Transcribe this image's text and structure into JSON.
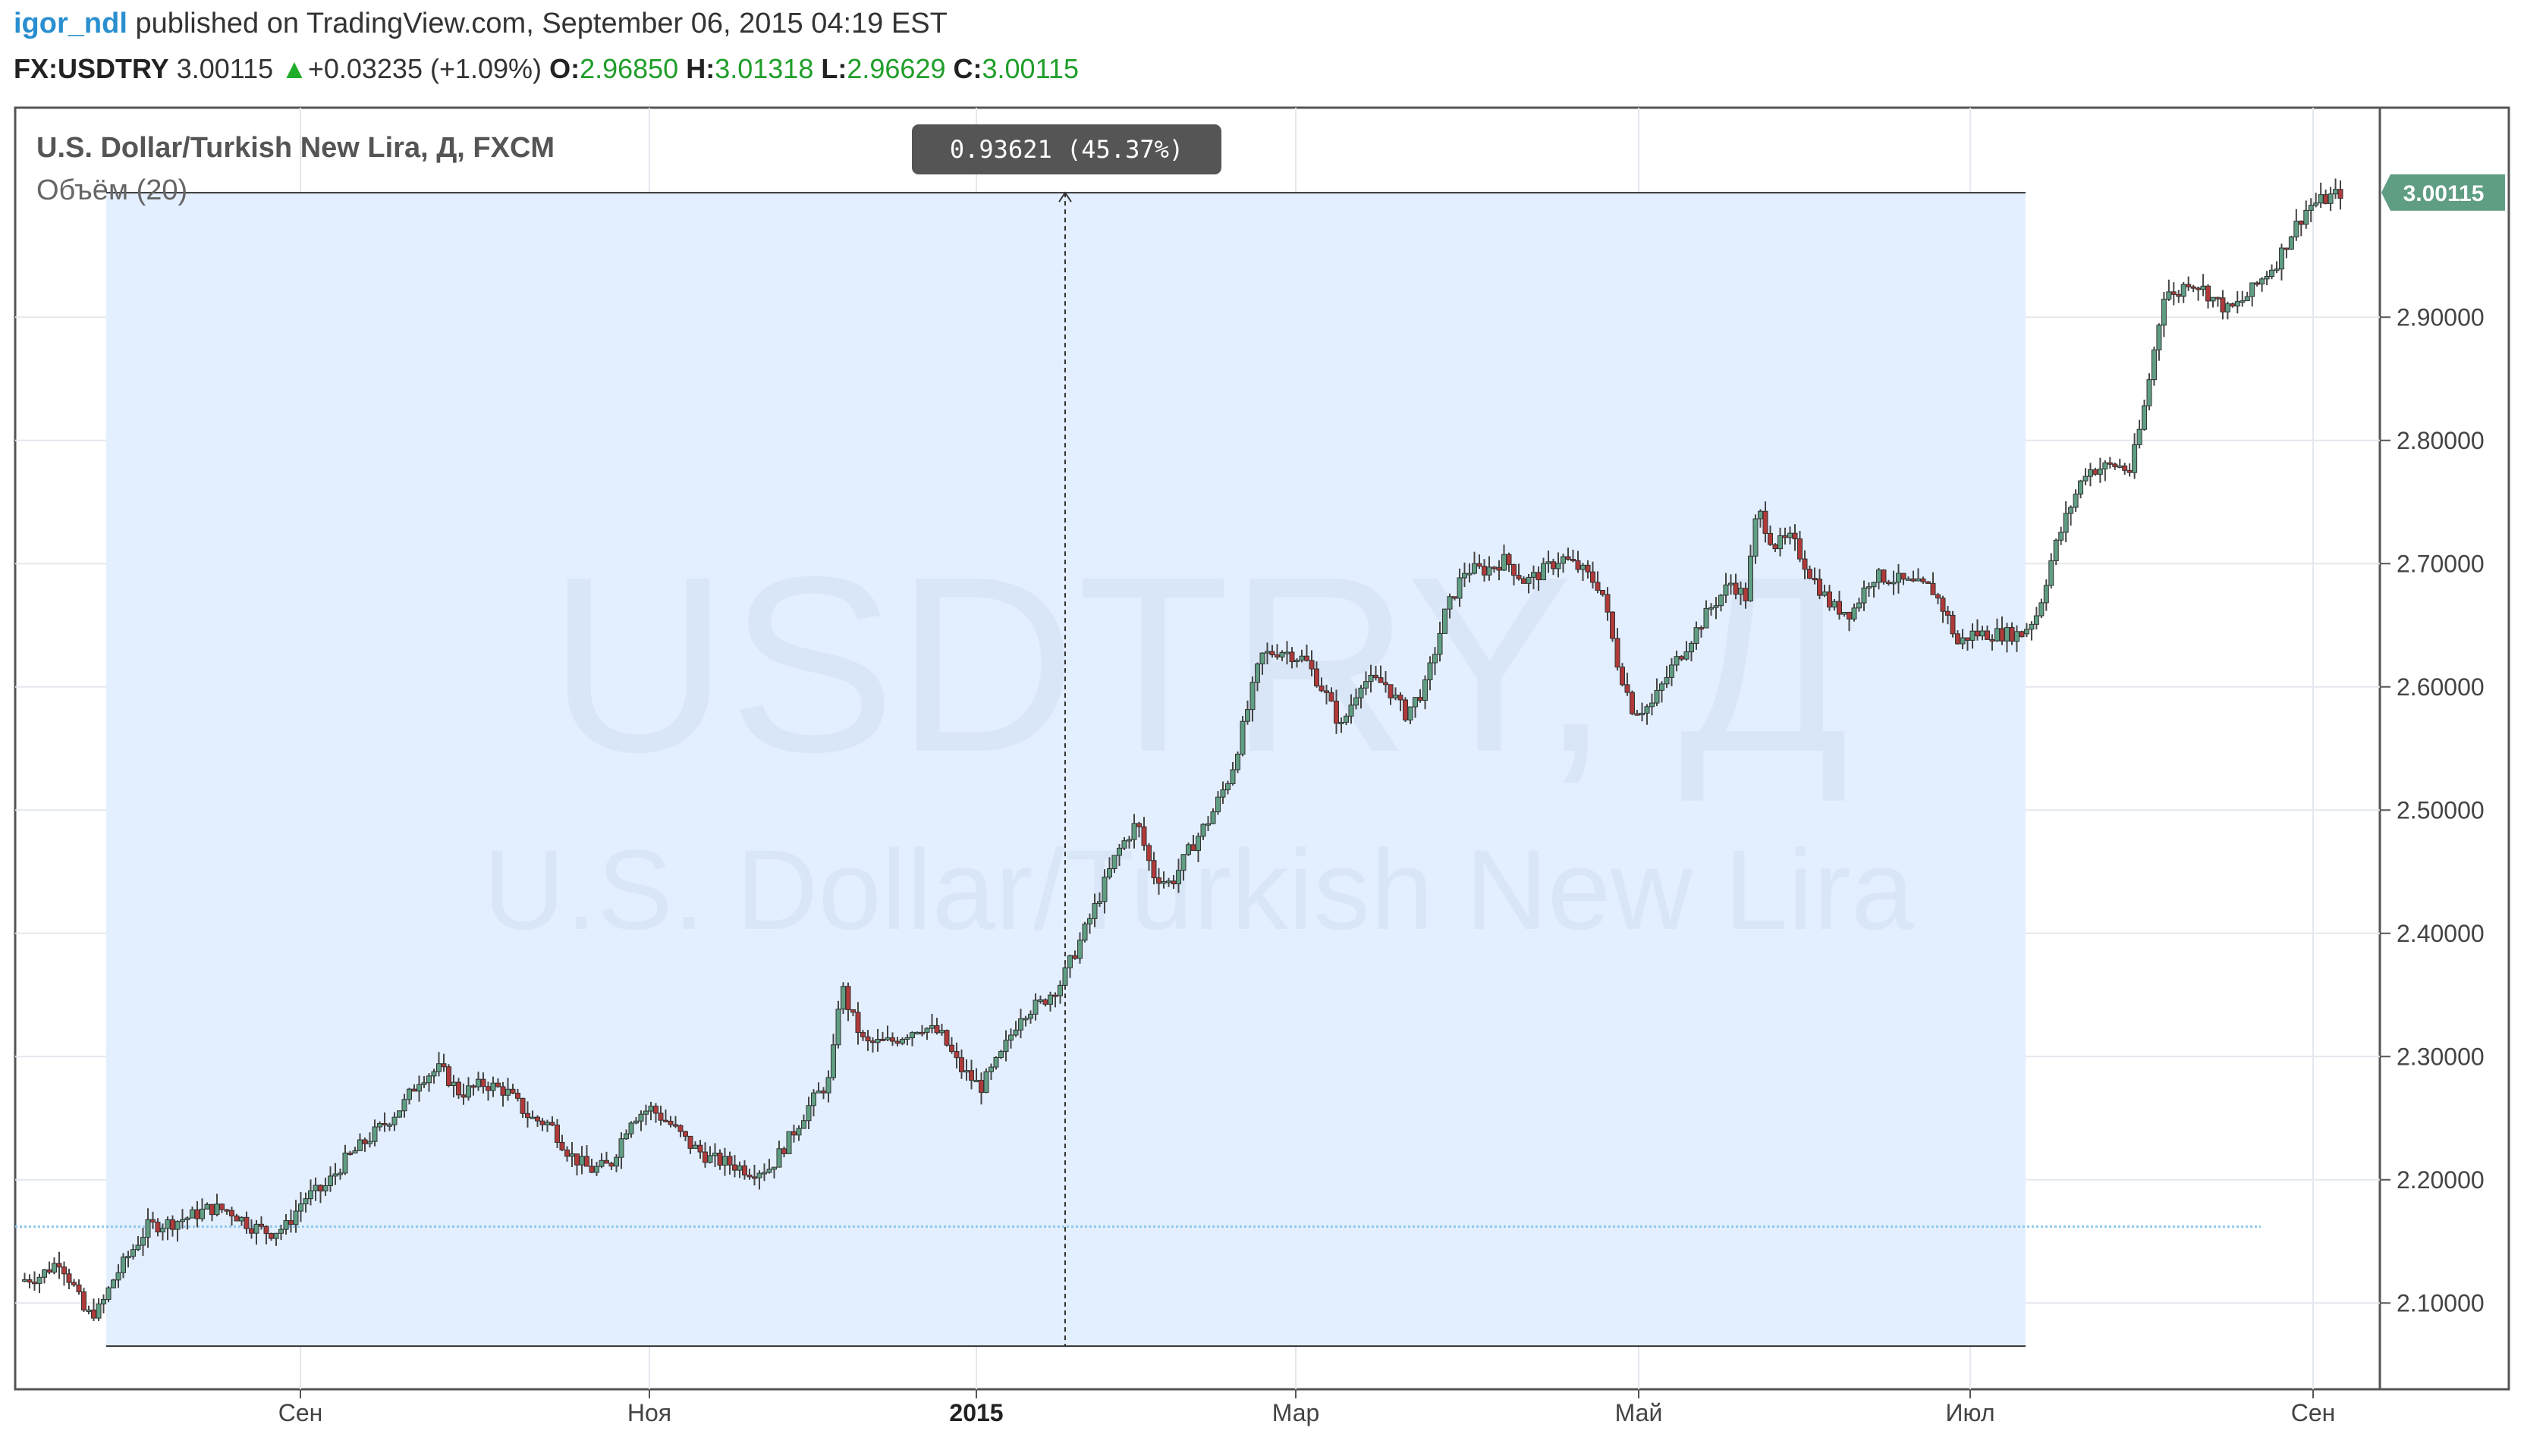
{
  "header": {
    "user": "igor_ndl",
    "published": "published on TradingView.com, September 06, 2015 04:19 EST"
  },
  "quote": {
    "symbol": "FX:USDTRY",
    "last": "3.00115",
    "change": "+0.03235 (+1.09%)",
    "o_label": "O:",
    "o_val": "2.96850",
    "h_label": "H:",
    "h_val": "3.01318",
    "l_label": "L:",
    "l_val": "2.96629",
    "c_label": "C:",
    "c_val": "3.00115"
  },
  "legend": {
    "title": "U.S. Dollar/Turkish New Lira, Д, FXCM",
    "volume": "Объём (20)"
  },
  "watermark": {
    "symbol": "USDTRY, Д",
    "name": "U.S. Dollar/Turkish New Lira"
  },
  "measure_tooltip": "0.93621 (45.37%)",
  "price_tag": "3.00115",
  "colors": {
    "up": "#5f9e83",
    "down": "#b03a3a",
    "range_fill": "#e3efff",
    "grid": "#e3e8ee",
    "price_tag": "#5f9e83"
  },
  "chart_data": {
    "type": "candlestick",
    "ylim": [
      2.03,
      3.07
    ],
    "yticks": [
      "2.10000",
      "2.20000",
      "2.30000",
      "2.40000",
      "2.50000",
      "2.60000",
      "2.70000",
      "2.80000",
      "2.90000"
    ],
    "xticks": [
      "Сен",
      "Ноя",
      "2015",
      "Мар",
      "Май",
      "Июл",
      "Сен"
    ],
    "bold_xtick": "2015",
    "volume_ma_level": 2.162,
    "measure": {
      "from": 2.065,
      "to": 3.001,
      "delta": 0.93621,
      "percent": 45.37
    },
    "path": [
      [
        0.0,
        2.118
      ],
      [
        0.01,
        2.122
      ],
      [
        0.02,
        2.135
      ],
      [
        0.027,
        2.113
      ],
      [
        0.033,
        2.09
      ],
      [
        0.04,
        2.095
      ],
      [
        0.047,
        2.12
      ],
      [
        0.055,
        2.14
      ],
      [
        0.064,
        2.162
      ],
      [
        0.075,
        2.165
      ],
      [
        0.085,
        2.17
      ],
      [
        0.095,
        2.177
      ],
      [
        0.105,
        2.175
      ],
      [
        0.115,
        2.163
      ],
      [
        0.125,
        2.157
      ],
      [
        0.133,
        2.162
      ],
      [
        0.142,
        2.185
      ],
      [
        0.152,
        2.193
      ],
      [
        0.162,
        2.215
      ],
      [
        0.172,
        2.23
      ],
      [
        0.182,
        2.245
      ],
      [
        0.192,
        2.262
      ],
      [
        0.2,
        2.283
      ],
      [
        0.21,
        2.29
      ],
      [
        0.22,
        2.27
      ],
      [
        0.232,
        2.278
      ],
      [
        0.243,
        2.272
      ],
      [
        0.255,
        2.25
      ],
      [
        0.265,
        2.245
      ],
      [
        0.275,
        2.22
      ],
      [
        0.285,
        2.208
      ],
      [
        0.295,
        2.212
      ],
      [
        0.305,
        2.25
      ],
      [
        0.315,
        2.258
      ],
      [
        0.325,
        2.245
      ],
      [
        0.335,
        2.228
      ],
      [
        0.345,
        2.217
      ],
      [
        0.355,
        2.213
      ],
      [
        0.365,
        2.207
      ],
      [
        0.375,
        2.21
      ],
      [
        0.385,
        2.235
      ],
      [
        0.395,
        2.262
      ],
      [
        0.405,
        2.282
      ],
      [
        0.41,
        2.36
      ],
      [
        0.415,
        2.335
      ],
      [
        0.422,
        2.31
      ],
      [
        0.435,
        2.312
      ],
      [
        0.45,
        2.325
      ],
      [
        0.46,
        2.318
      ],
      [
        0.47,
        2.29
      ],
      [
        0.48,
        2.275
      ],
      [
        0.49,
        2.3
      ],
      [
        0.5,
        2.335
      ],
      [
        0.51,
        2.343
      ],
      [
        0.52,
        2.36
      ],
      [
        0.53,
        2.395
      ],
      [
        0.538,
        2.425
      ],
      [
        0.548,
        2.465
      ],
      [
        0.558,
        2.49
      ],
      [
        0.566,
        2.448
      ],
      [
        0.575,
        2.44
      ],
      [
        0.585,
        2.47
      ],
      [
        0.595,
        2.495
      ],
      [
        0.605,
        2.53
      ],
      [
        0.613,
        2.58
      ],
      [
        0.62,
        2.625
      ],
      [
        0.63,
        2.63
      ],
      [
        0.642,
        2.622
      ],
      [
        0.652,
        2.595
      ],
      [
        0.66,
        2.567
      ],
      [
        0.67,
        2.605
      ],
      [
        0.682,
        2.603
      ],
      [
        0.692,
        2.578
      ],
      [
        0.702,
        2.6
      ],
      [
        0.712,
        2.66
      ],
      [
        0.722,
        2.695
      ],
      [
        0.732,
        2.695
      ],
      [
        0.742,
        2.703
      ],
      [
        0.752,
        2.685
      ],
      [
        0.76,
        2.693
      ],
      [
        0.77,
        2.705
      ],
      [
        0.78,
        2.695
      ],
      [
        0.79,
        2.68
      ],
      [
        0.798,
        2.62
      ],
      [
        0.806,
        2.58
      ],
      [
        0.815,
        2.585
      ],
      [
        0.825,
        2.615
      ],
      [
        0.835,
        2.64
      ],
      [
        0.845,
        2.665
      ],
      [
        0.855,
        2.685
      ],
      [
        0.862,
        2.672
      ],
      [
        0.868,
        2.745
      ],
      [
        0.876,
        2.715
      ],
      [
        0.885,
        2.72
      ],
      [
        0.895,
        2.69
      ],
      [
        0.905,
        2.665
      ],
      [
        0.915,
        2.66
      ],
      [
        0.925,
        2.69
      ],
      [
        0.935,
        2.688
      ],
      [
        0.945,
        2.683
      ],
      [
        0.955,
        2.68
      ],
      [
        0.962,
        2.66
      ],
      [
        0.968,
        2.635
      ],
      [
        0.975,
        2.643
      ]
    ],
    "path_after": [
      [
        0.0,
        2.643
      ],
      [
        0.05,
        2.66
      ],
      [
        0.1,
        2.71
      ],
      [
        0.15,
        2.745
      ],
      [
        0.2,
        2.775
      ],
      [
        0.25,
        2.778
      ],
      [
        0.3,
        2.78
      ],
      [
        0.34,
        2.775
      ],
      [
        0.38,
        2.82
      ],
      [
        0.42,
        2.88
      ],
      [
        0.45,
        2.925
      ],
      [
        0.48,
        2.915
      ],
      [
        0.52,
        2.93
      ],
      [
        0.56,
        2.925
      ],
      [
        0.6,
        2.915
      ],
      [
        0.65,
        2.905
      ],
      [
        0.7,
        2.915
      ],
      [
        0.75,
        2.93
      ],
      [
        0.8,
        2.945
      ],
      [
        0.85,
        2.97
      ],
      [
        0.9,
        2.99
      ],
      [
        1.0,
        3.001
      ]
    ]
  }
}
